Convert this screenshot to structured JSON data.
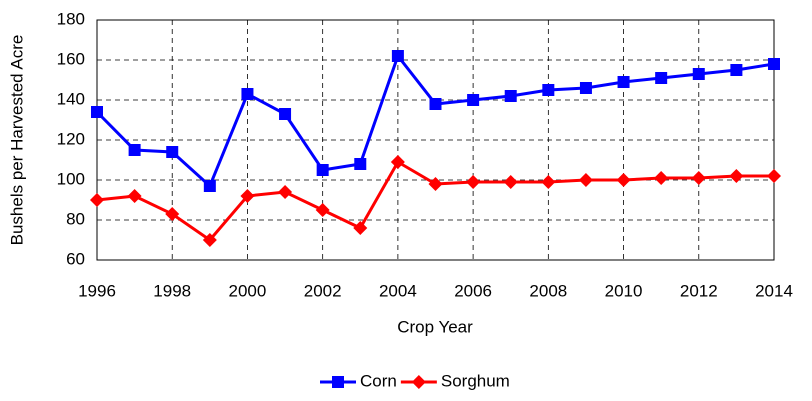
{
  "chart_data": {
    "type": "line",
    "x_label": "Crop Year",
    "y_label": "Bushels per Harvested Acre",
    "x": [
      1996,
      1997,
      1998,
      1999,
      2000,
      2001,
      2002,
      2003,
      2004,
      2005,
      2006,
      2007,
      2008,
      2009,
      2010,
      2011,
      2012,
      2013,
      2014
    ],
    "series": [
      {
        "name": "Corn",
        "color": "#0000ff",
        "marker": "square",
        "values": [
          134,
          115,
          114,
          97,
          143,
          133,
          105,
          108,
          162,
          138,
          140,
          142,
          145,
          146,
          149,
          151,
          153,
          155,
          158
        ]
      },
      {
        "name": "Sorghum",
        "color": "#ff0000",
        "marker": "diamond",
        "values": [
          90,
          92,
          83,
          70,
          92,
          94,
          85,
          76,
          109,
          98,
          99,
          99,
          99,
          100,
          100,
          101,
          101,
          102,
          102
        ]
      }
    ],
    "xlim": [
      1996,
      2014
    ],
    "xticks": [
      1996,
      1998,
      2000,
      2002,
      2004,
      2006,
      2008,
      2010,
      2012,
      2014
    ],
    "ylim": [
      60,
      180
    ],
    "yticks": [
      60,
      80,
      100,
      120,
      140,
      160,
      180
    ],
    "grid": true,
    "legend": "bottom"
  }
}
